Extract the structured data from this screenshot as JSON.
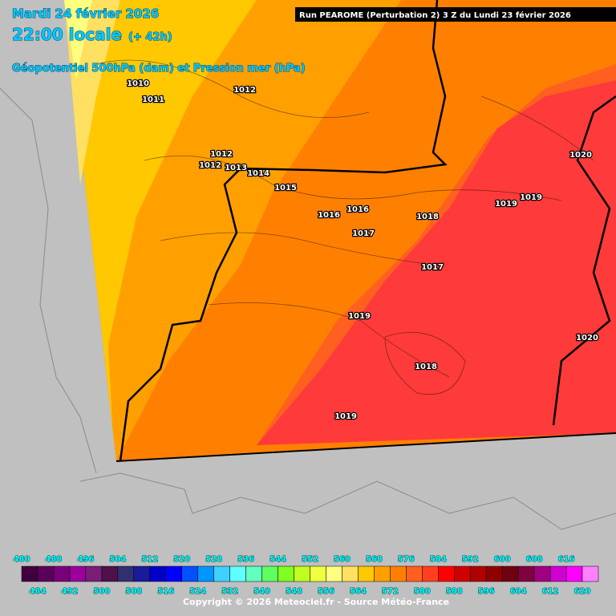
{
  "header": {
    "date": "Mardi 24 février 2026",
    "time": "22:00 locale",
    "lead": "(+ 42h)",
    "field": "Géopotentiel 500hPa (dam) et Pression mer (hPa)"
  },
  "run": "Run PEAROME (Perturbation 2) 3 Z du Lundi 23 février 2026",
  "isobar_labels": [
    1010,
    1011,
    1012,
    1012,
    1012,
    1013,
    1014,
    1015,
    1016,
    1016,
    1017,
    1018,
    1017,
    1019,
    1019,
    1020,
    1019,
    1018,
    1020,
    1019
  ],
  "colorbar": {
    "values": [
      480,
      484,
      488,
      492,
      496,
      500,
      504,
      508,
      512,
      516,
      520,
      524,
      528,
      532,
      536,
      540,
      544,
      548,
      552,
      556,
      560,
      564,
      568,
      572,
      576,
      580,
      584,
      588,
      592,
      596,
      600,
      604,
      608,
      612,
      616,
      620
    ],
    "colors": [
      "#400040",
      "#5a005a",
      "#780078",
      "#9a009a",
      "#7a1e7a",
      "#50104a",
      "#303070",
      "#1a1a9a",
      "#0000c8",
      "#0000ff",
      "#0050ff",
      "#0096ff",
      "#40d0ff",
      "#60ffff",
      "#60ffc0",
      "#60ff60",
      "#80ff20",
      "#c0ff20",
      "#f0ff40",
      "#ffff80",
      "#ffe060",
      "#ffc800",
      "#ffa000",
      "#ff8000",
      "#ff6020",
      "#ff4020",
      "#ff0000",
      "#d00000",
      "#b00000",
      "#900000",
      "#700010",
      "#800040",
      "#a00080",
      "#d000d0",
      "#ff00ff",
      "#ff80ff"
    ]
  },
  "copyright": "Copyright © 2026 Meteociel.fr - Source Météo-France"
}
